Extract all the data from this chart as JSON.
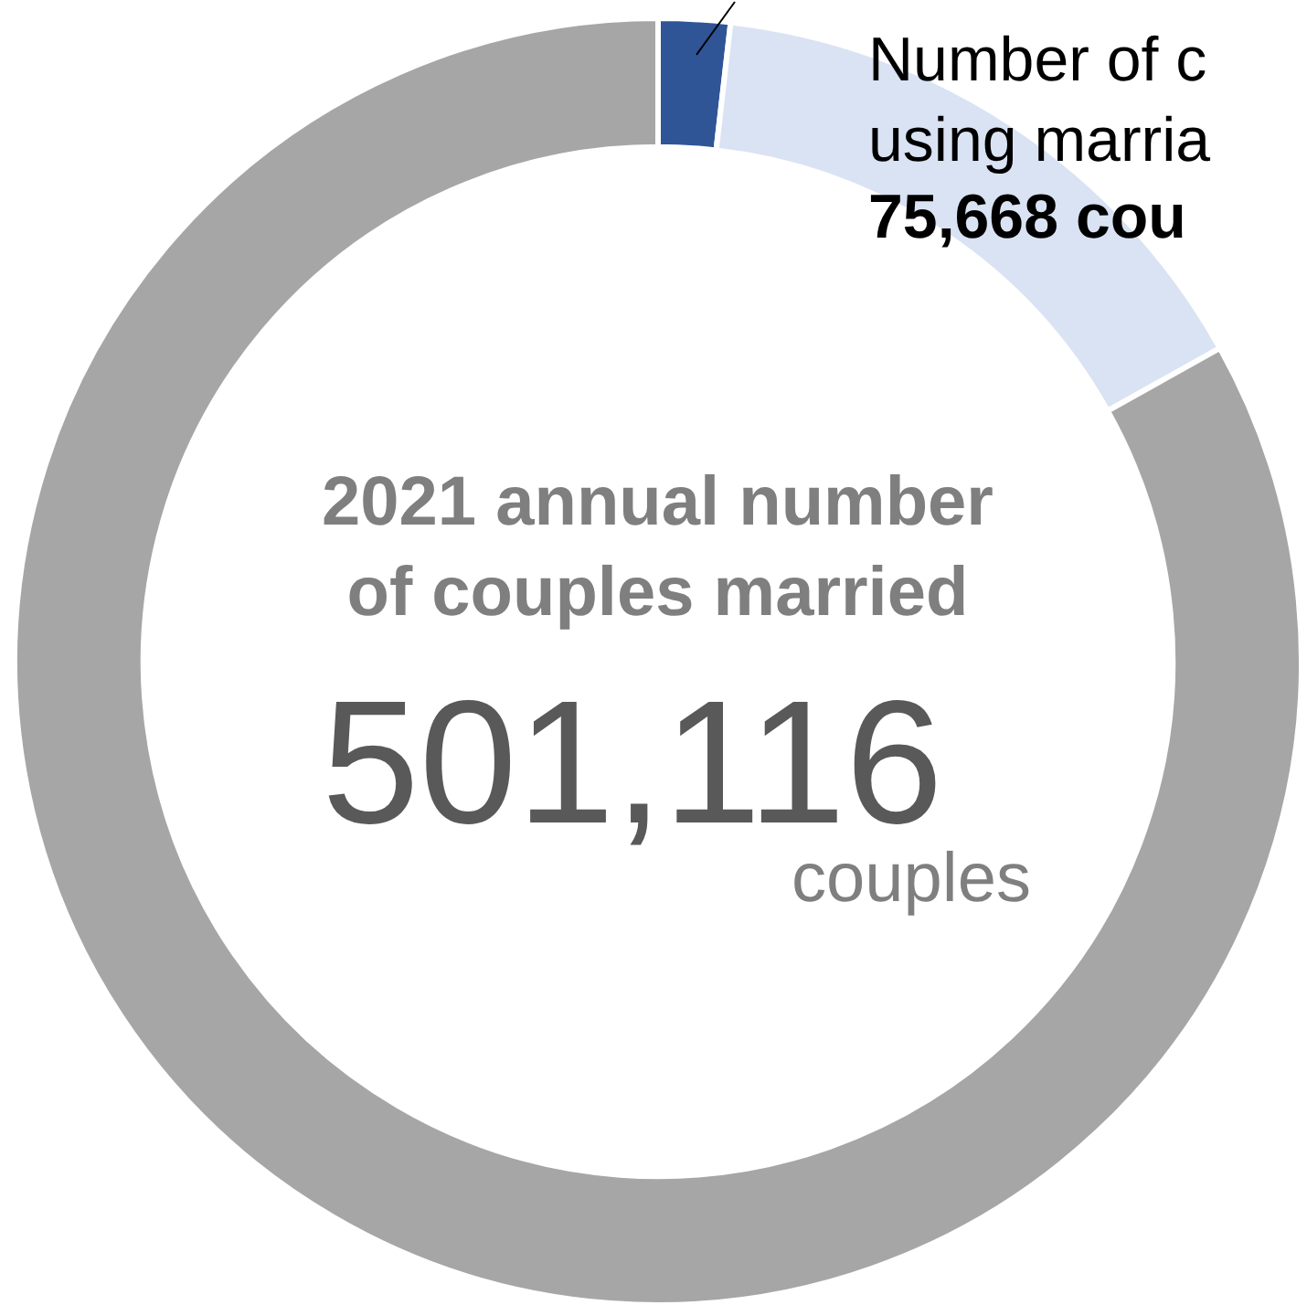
{
  "chart_data": {
    "type": "donut",
    "categories": [
      null,
      null,
      null
    ],
    "values": [
      1.8,
      15.1,
      83.1
    ],
    "colors": [
      "#2f5597",
      "#dae3f3",
      "#a6a6a6"
    ],
    "annotations": [
      "Number of c\nusing marria",
      "75,668 cou",
      "2021 annual number\nof couples married",
      "501,116",
      "couples"
    ],
    "legend": false
  }
}
